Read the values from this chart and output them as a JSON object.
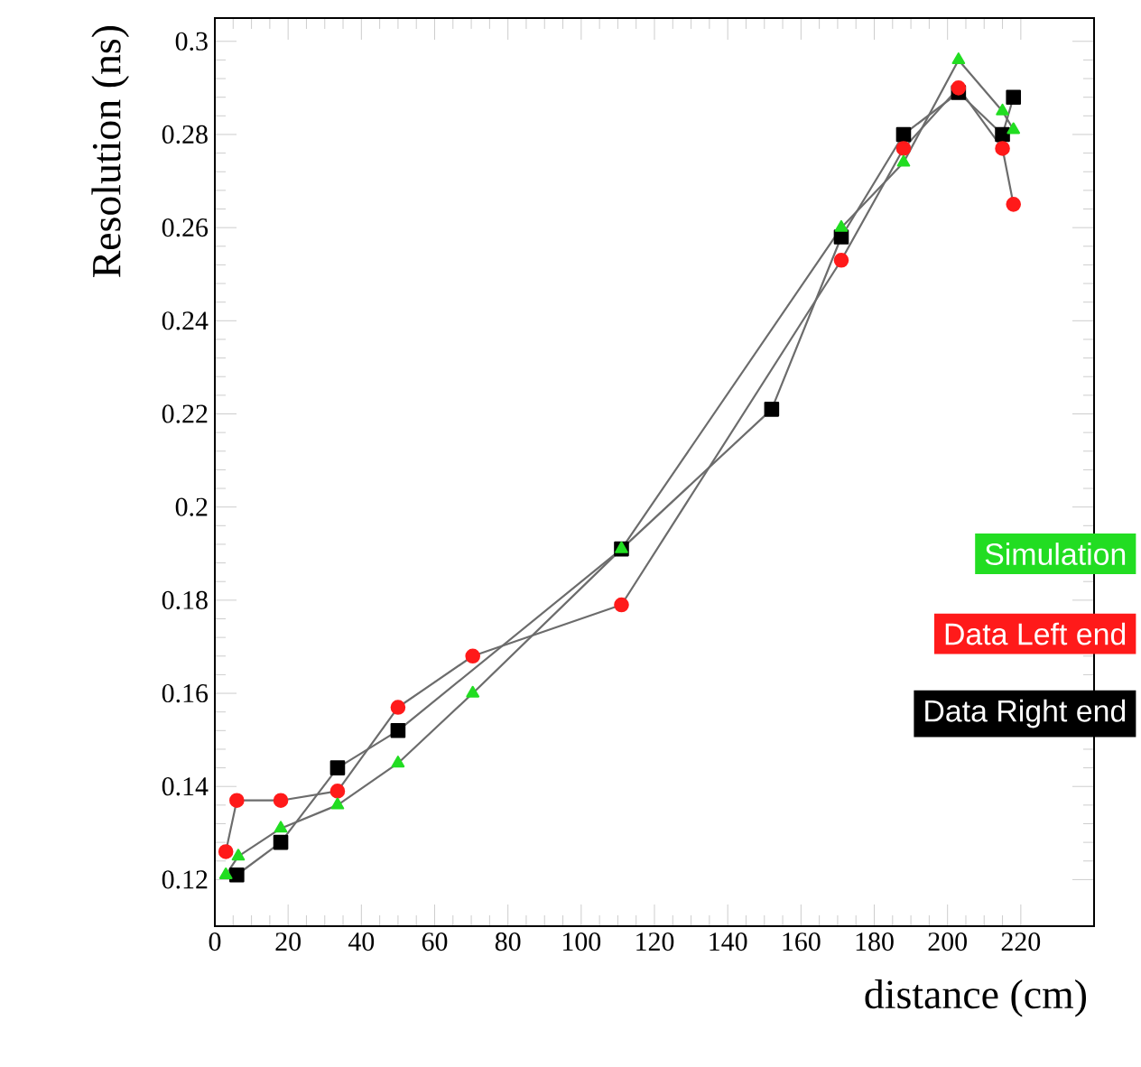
{
  "chart_data": {
    "type": "line",
    "xlabel": "distance (cm)",
    "ylabel": "Resolution (ns)",
    "xlim": [
      0,
      240
    ],
    "ylim": [
      0.11,
      0.305
    ],
    "xticks": [
      0,
      20,
      40,
      60,
      80,
      100,
      120,
      140,
      160,
      180,
      200,
      220
    ],
    "yticks": [
      0.12,
      0.14,
      0.16,
      0.18,
      0.2,
      0.22,
      0.24,
      0.26,
      0.28,
      0.3
    ],
    "legend": "right",
    "grid": false,
    "line_style": "solid",
    "series": [
      {
        "name": "Simulation",
        "color": "#22dd22",
        "marker": "triangle",
        "x": [
          3,
          6.4,
          18,
          33.5,
          50,
          70.4,
          111,
          171,
          188,
          203,
          215,
          218
        ],
        "values": [
          0.121,
          0.125,
          0.131,
          0.136,
          0.145,
          0.16,
          0.191,
          0.26,
          0.274,
          0.296,
          0.285,
          0.281
        ]
      },
      {
        "name": "Data Left end",
        "color": "#ff1a1a",
        "marker": "circle",
        "x": [
          3,
          6,
          18,
          33.5,
          50,
          70.4,
          111,
          171,
          188,
          203,
          215,
          218
        ],
        "values": [
          0.126,
          0.137,
          0.137,
          0.139,
          0.157,
          0.168,
          0.179,
          0.253,
          0.277,
          0.29,
          0.277,
          0.265
        ]
      },
      {
        "name": "Data Right end",
        "color": "#000000",
        "marker": "square",
        "x": [
          6,
          18,
          33.5,
          50,
          111,
          152,
          171,
          188,
          203,
          215,
          218
        ],
        "values": [
          0.121,
          0.128,
          0.144,
          0.152,
          0.191,
          0.221,
          0.258,
          0.28,
          0.289,
          0.28,
          0.288
        ]
      }
    ]
  }
}
